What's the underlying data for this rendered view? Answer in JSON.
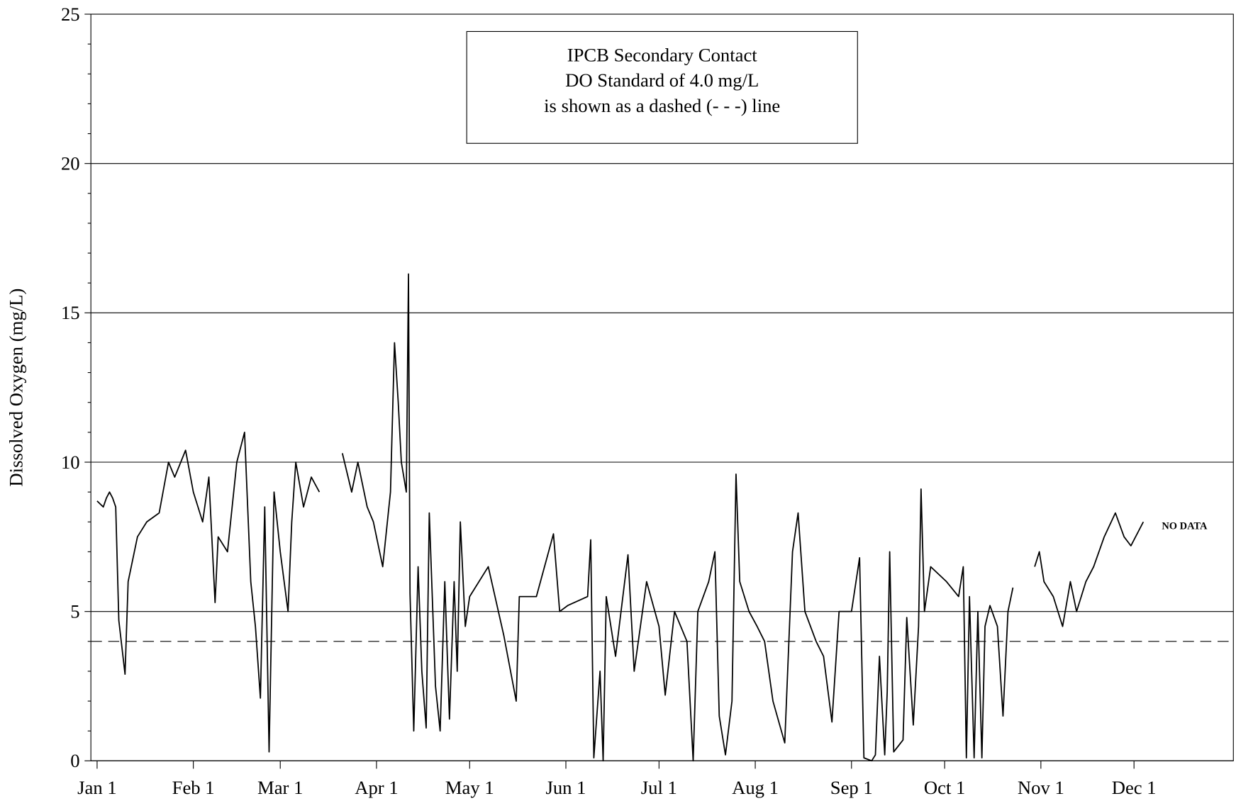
{
  "chart_data": {
    "type": "line",
    "ylabel": "Dissolved Oxygen (mg/L)",
    "annotation": [
      "IPCB Secondary Contact",
      "DO Standard of 4.0 mg/L",
      "is shown as a dashed (- - -) line"
    ],
    "no_data_label": "NO DATA",
    "standard": 4,
    "color": "#000000",
    "grid": true,
    "xlim": [
      -2,
      366
    ],
    "xticks": [
      {
        "value": 0,
        "label": "Jan 1"
      },
      {
        "value": 31,
        "label": "Feb 1"
      },
      {
        "value": 59,
        "label": "Mar 1"
      },
      {
        "value": 90,
        "label": "Apr 1"
      },
      {
        "value": 120,
        "label": "May 1"
      },
      {
        "value": 151,
        "label": "Jun 1"
      },
      {
        "value": 181,
        "label": "Jul 1"
      },
      {
        "value": 212,
        "label": "Aug 1"
      },
      {
        "value": 243,
        "label": "Sep 1"
      },
      {
        "value": 273,
        "label": "Oct 1"
      },
      {
        "value": 304,
        "label": "Nov 1"
      },
      {
        "value": 334,
        "label": "Dec 1"
      }
    ],
    "ylim": [
      0,
      25
    ],
    "yticks": [
      0,
      5,
      10,
      15,
      20,
      25
    ],
    "yminorticks": [
      1,
      2,
      3,
      4,
      6,
      7,
      8,
      9,
      11,
      12,
      13,
      14,
      16,
      17,
      18,
      19,
      21,
      22,
      23,
      24
    ],
    "x": [
      0,
      1,
      2,
      3,
      4,
      5,
      6,
      7,
      9,
      10,
      13,
      16,
      20,
      23,
      25,
      28.5,
      31,
      34,
      36,
      38,
      39,
      42,
      45,
      47.5,
      49.5,
      51,
      52.6,
      54,
      55.4,
      57,
      59,
      61.5,
      62.7,
      64,
      66.5,
      69,
      71.6,
      75,
      79,
      82,
      84,
      87,
      89,
      92,
      94.5,
      95.8,
      97,
      98,
      99.6,
      100.3,
      100.8,
      102,
      103.4,
      104.6,
      106,
      107,
      109,
      110.5,
      112,
      113.5,
      115,
      116,
      117,
      118.6,
      120,
      126,
      131,
      135,
      136,
      141.5,
      147,
      149,
      151.6,
      158,
      159,
      160,
      162,
      163,
      164,
      167,
      171,
      173,
      177,
      181,
      183,
      186,
      190,
      192,
      193.5,
      197,
      199,
      200.4,
      202.4,
      204.5,
      205.8,
      207,
      210,
      212.6,
      215,
      217.7,
      221.5,
      224,
      225.8,
      228,
      231.6,
      234,
      236.7,
      239,
      243,
      245.6,
      247,
      249.5,
      250.7,
      252,
      253.7,
      254.5,
      255.3,
      256.6,
      259.6,
      260.8,
      262.9,
      264.6,
      265.4,
      266.5,
      268.5,
      273.6,
      277.5,
      279,
      280,
      281,
      282.5,
      283.7,
      285,
      286,
      287.6,
      290,
      291.8,
      293.4,
      295,
      298,
      302,
      303.5,
      305,
      308,
      311,
      313.5,
      315.5,
      318.5,
      321,
      324.4,
      328,
      330.8,
      333,
      337
    ],
    "values": [
      8.7,
      8.6,
      8.5,
      8.8,
      9.0,
      8.8,
      8.5,
      4.7,
      2.9,
      6.0,
      7.5,
      8.0,
      8.3,
      10.0,
      9.5,
      10.4,
      9.0,
      8.0,
      9.5,
      5.3,
      7.5,
      7.0,
      10.0,
      11.0,
      6.0,
      4.5,
      2.1,
      8.5,
      0.3,
      9.0,
      7.0,
      5.0,
      8.0,
      10.0,
      8.5,
      9.5,
      9.0,
      null,
      10.3,
      9.0,
      10.0,
      8.5,
      8.0,
      6.5,
      9.0,
      14.0,
      12.0,
      10.0,
      9.0,
      16.3,
      5.6,
      1.0,
      6.5,
      3.0,
      1.1,
      8.3,
      2.5,
      1.0,
      6.0,
      1.4,
      6.0,
      3.0,
      8.0,
      4.5,
      5.5,
      6.5,
      4.2,
      2.0,
      5.5,
      5.5,
      7.6,
      5.0,
      5.2,
      5.5,
      7.4,
      0.1,
      3.0,
      0.0,
      5.5,
      3.5,
      6.9,
      3.0,
      6.0,
      4.5,
      2.2,
      5.0,
      4.0,
      0.0,
      5.0,
      6.0,
      7.0,
      1.5,
      0.2,
      2.0,
      9.6,
      6.0,
      5.0,
      4.5,
      4.0,
      2.0,
      0.6,
      7.0,
      8.3,
      5.0,
      4.0,
      3.5,
      1.3,
      5.0,
      5.0,
      6.8,
      0.1,
      0.0,
      0.2,
      3.5,
      0.2,
      2.3,
      7.0,
      0.3,
      0.7,
      4.8,
      1.2,
      4.5,
      9.1,
      5.0,
      6.5,
      6.0,
      5.5,
      6.5,
      0.1,
      5.5,
      0.1,
      5.0,
      0.1,
      4.5,
      5.2,
      4.5,
      1.5,
      5.0,
      5.8,
      null,
      6.5,
      7.0,
      6.0,
      5.5,
      4.5,
      6.0,
      5.0,
      6.0,
      6.5,
      7.5,
      8.3,
      7.5,
      7.2,
      8.0
    ]
  }
}
